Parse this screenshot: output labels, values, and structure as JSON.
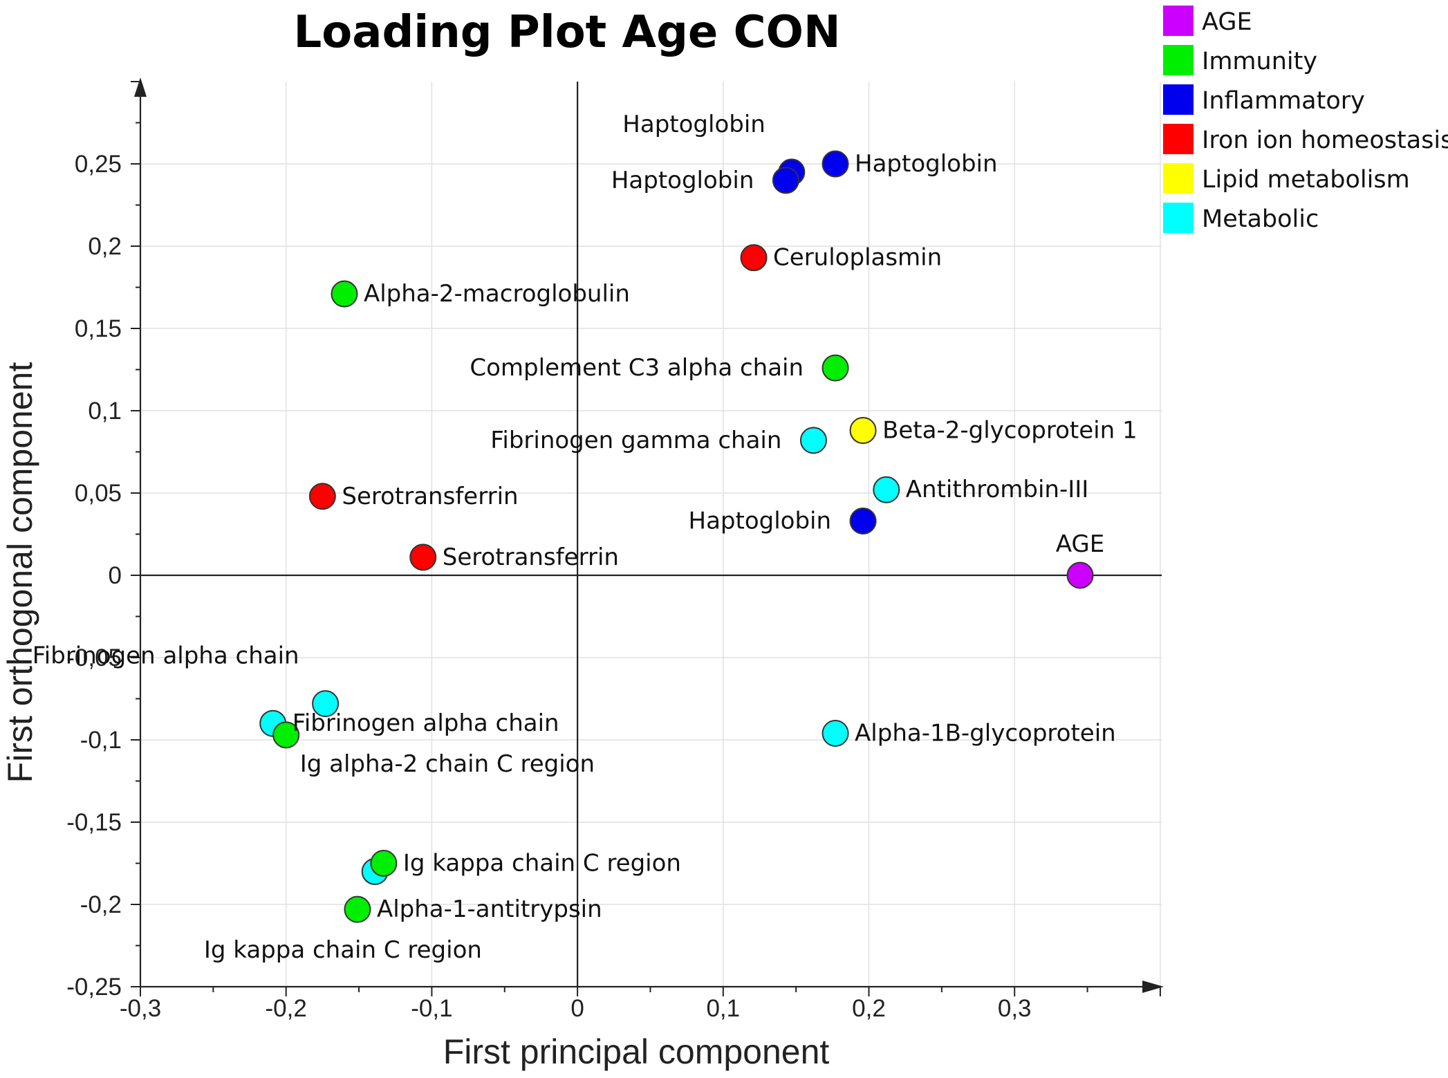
{
  "chart_data": {
    "type": "scatter",
    "title": "Loading Plot Age CON",
    "xlabel": "First principal component",
    "ylabel": "First orthogonal component",
    "xlim": [
      -0.3,
      0.4
    ],
    "ylim": [
      -0.25,
      0.3
    ],
    "x_ticks": [
      -0.3,
      -0.2,
      -0.1,
      0,
      0.1,
      0.2,
      0.3
    ],
    "x_tick_labels": [
      "-0,3",
      "-0,2",
      "-0,1",
      "0",
      "0,1",
      "0,2",
      "0,3"
    ],
    "y_ticks": [
      0.25,
      0.2,
      0.15,
      0.1,
      0.05,
      0,
      -0.05,
      -0.1,
      -0.15,
      -0.2,
      -0.25
    ],
    "y_tick_labels": [
      "0,25",
      "0,2",
      "0,15",
      "0,1",
      "0,05",
      "0",
      "-0,05",
      "-0,1",
      "-0,15",
      "-0,2",
      "-0,25"
    ],
    "grid": true,
    "legend_position": "top-right, outside plot",
    "categories": [
      {
        "name": "AGE",
        "color": "#cc00ff"
      },
      {
        "name": "Immunity",
        "color": "#00ee00"
      },
      {
        "name": "Inflammatory",
        "color": "#0000ee"
      },
      {
        "name": "Iron ion homeostasis",
        "color": "#ff0000"
      },
      {
        "name": "Lipid metabolism",
        "color": "#ffff00"
      },
      {
        "name": "Metabolic",
        "color": "#00ffff"
      }
    ],
    "points": [
      {
        "label": "Haptoglobin",
        "category": "Inflammatory",
        "x": 0.147,
        "y": 0.245,
        "label_side": "above-left"
      },
      {
        "label": "Haptoglobin",
        "category": "Inflammatory",
        "x": 0.143,
        "y": 0.24,
        "label_side": "left"
      },
      {
        "label": "Haptoglobin",
        "category": "Inflammatory",
        "x": 0.177,
        "y": 0.25,
        "label_side": "right"
      },
      {
        "label": "Ceruloplasmin",
        "category": "Iron ion homeostasis",
        "x": 0.121,
        "y": 0.193,
        "label_side": "right"
      },
      {
        "label": "Alpha-2-macroglobulin",
        "category": "Immunity",
        "x": -0.16,
        "y": 0.171,
        "label_side": "right"
      },
      {
        "label": "Complement C3 alpha chain",
        "category": "Immunity",
        "x": 0.177,
        "y": 0.126,
        "label_side": "left"
      },
      {
        "label": "Fibrinogen gamma chain",
        "category": "Metabolic",
        "x": 0.162,
        "y": 0.082,
        "label_side": "left"
      },
      {
        "label": "Beta-2-glycoprotein 1",
        "category": "Lipid metabolism",
        "x": 0.196,
        "y": 0.088,
        "label_side": "right"
      },
      {
        "label": "Antithrombin-III",
        "category": "Metabolic",
        "x": 0.212,
        "y": 0.052,
        "label_side": "right"
      },
      {
        "label": "Haptoglobin",
        "category": "Inflammatory",
        "x": 0.196,
        "y": 0.033,
        "label_side": "left"
      },
      {
        "label": "Serotransferrin",
        "category": "Iron ion homeostasis",
        "x": -0.175,
        "y": 0.048,
        "label_side": "right"
      },
      {
        "label": "Serotransferrin",
        "category": "Iron ion homeostasis",
        "x": -0.106,
        "y": 0.011,
        "label_side": "right"
      },
      {
        "label": "AGE",
        "category": "AGE",
        "x": 0.345,
        "y": 0.0,
        "label_side": "above"
      },
      {
        "label": "Fibrinogen alpha chain",
        "category": "Metabolic",
        "x": -0.173,
        "y": -0.078,
        "label_side": "above-left"
      },
      {
        "label": "Fibrinogen alpha chain",
        "category": "Metabolic",
        "x": -0.209,
        "y": -0.09,
        "label_side": "right"
      },
      {
        "label": "Ig alpha-2 chain C region",
        "category": "Immunity",
        "x": -0.2,
        "y": -0.097,
        "label_side": "below-right"
      },
      {
        "label": "Alpha-1B-glycoprotein",
        "category": "Metabolic",
        "x": 0.177,
        "y": -0.096,
        "label_side": "right"
      },
      {
        "label": "Ig kappa chain C region",
        "category": "Metabolic",
        "x": -0.139,
        "y": -0.18,
        "label_side": "none"
      },
      {
        "label": "Ig kappa chain C region",
        "category": "Immunity",
        "x": -0.133,
        "y": -0.175,
        "label_side": "right"
      },
      {
        "label": "Alpha-1-antitrypsin",
        "category": "Immunity",
        "x": -0.151,
        "y": -0.203,
        "label_side": "right"
      },
      {
        "label": "Ig kappa chain C region",
        "category": "Immunity",
        "x": -0.151,
        "y": -0.203,
        "label_side": "below-left"
      }
    ]
  }
}
